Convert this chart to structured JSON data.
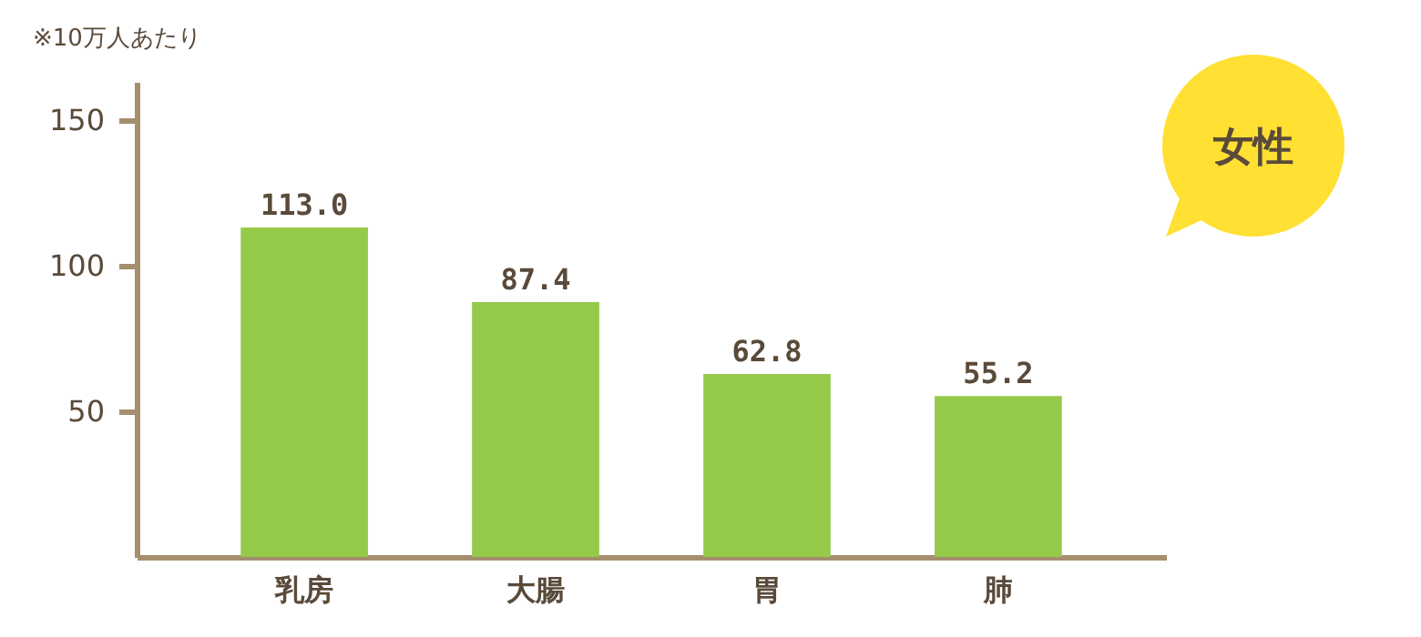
{
  "chart_data": {
    "type": "bar",
    "title": "女性",
    "annotations": [
      "※10万人あたり"
    ],
    "categories": [
      "乳房",
      "大腸",
      "胃",
      "肺"
    ],
    "values": [
      113.0,
      87.4,
      62.8,
      55.2
    ],
    "value_labels": [
      "113.0",
      "87.4",
      "62.8",
      "55.2"
    ],
    "color": "#95c94a",
    "ylim": [
      0,
      163
    ],
    "yticks": [
      50,
      100,
      150
    ],
    "grid": false
  }
}
